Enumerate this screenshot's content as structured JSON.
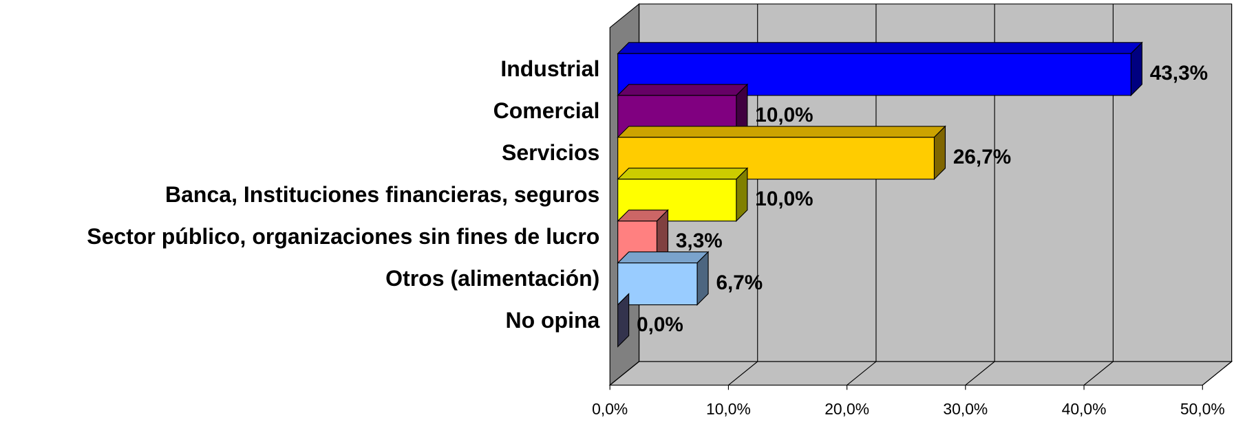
{
  "chart_data": {
    "type": "bar3d_horizontal",
    "categories": [
      "Industrial",
      "Comercial",
      "Servicios",
      "Banca, Instituciones financieras, seguros",
      "Sector público, organizaciones sin fines de lucro",
      "Otros (alimentación)",
      "No opina"
    ],
    "values": [
      43.3,
      10.0,
      26.7,
      10.0,
      3.3,
      6.7,
      0.0
    ],
    "value_labels": [
      "43,3%",
      "10,0%",
      "26,7%",
      "10,0%",
      "3,3%",
      "6,7%",
      "0,0%"
    ],
    "colors": [
      "#0000ff",
      "#800080",
      "#ffcc00",
      "#ffff00",
      "#ff8080",
      "#99ccff",
      "#666699"
    ],
    "xlim": [
      0,
      50
    ],
    "xticks": [
      {
        "value": 0,
        "label": "0,0%"
      },
      {
        "value": 10,
        "label": "10,0%"
      },
      {
        "value": 20,
        "label": "20,0%"
      },
      {
        "value": 30,
        "label": "30,0%"
      },
      {
        "value": 40,
        "label": "40,0%"
      },
      {
        "value": 50,
        "label": "50,0%"
      }
    ],
    "grid": true
  }
}
